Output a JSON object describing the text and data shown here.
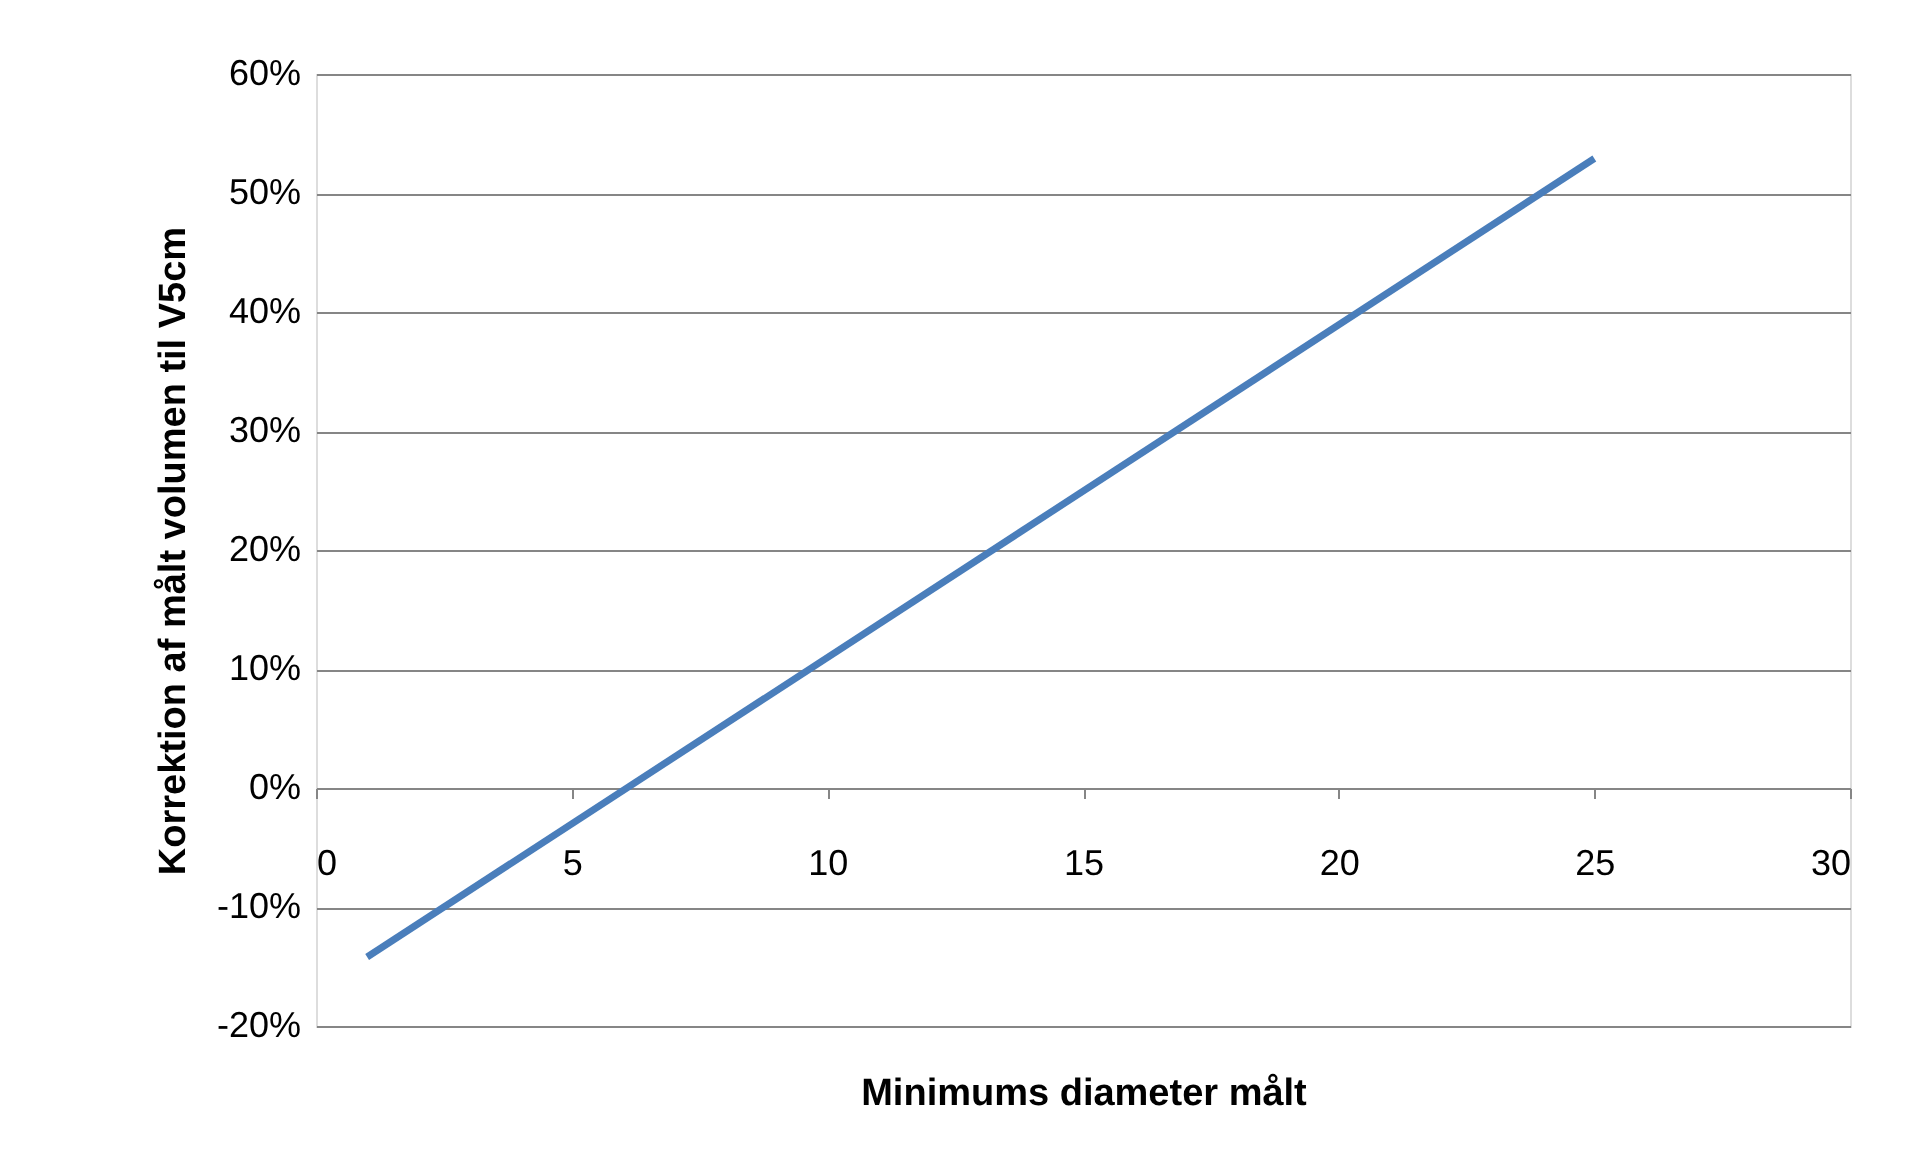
{
  "chart_data": {
    "type": "line",
    "xlabel": "Minimums diameter målt",
    "ylabel": "Korrektion af målt volumen til V5cm",
    "x": [
      1,
      25
    ],
    "series": [
      {
        "color": "#4a7ebb",
        "values": [
          -14.2,
          52.9
        ]
      }
    ],
    "xlim": [
      0,
      30
    ],
    "xticks": [
      0,
      5,
      10,
      15,
      20,
      25,
      30
    ],
    "ylim": [
      -20,
      60
    ],
    "yticks": [
      {
        "value": -20,
        "label": "-20%"
      },
      {
        "value": -10,
        "label": "-10%"
      },
      {
        "value": 0,
        "label": "0%"
      },
      {
        "value": 10,
        "label": "10%"
      },
      {
        "value": 20,
        "label": "20%"
      },
      {
        "value": 30,
        "label": "30%"
      },
      {
        "value": 40,
        "label": "40%"
      },
      {
        "value": 50,
        "label": "50%"
      },
      {
        "value": 60,
        "label": "60%"
      }
    ],
    "grid": "y",
    "marker": "none",
    "line_style": "solid",
    "legend": false
  }
}
